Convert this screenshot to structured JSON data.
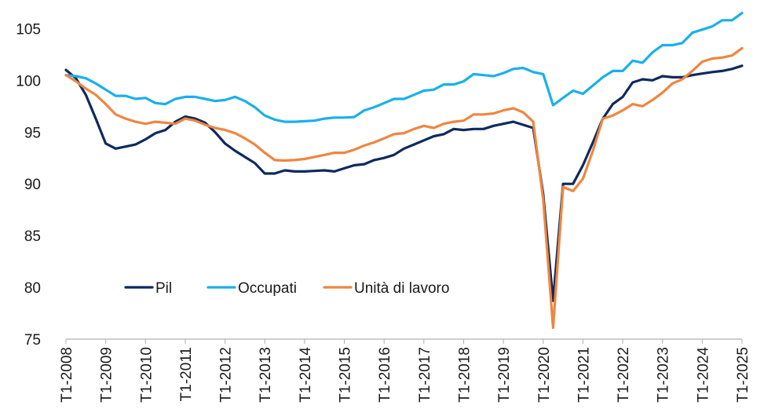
{
  "chart_data": {
    "type": "line",
    "title": "",
    "xlabel": "",
    "ylabel": "",
    "ylim": [
      75,
      107
    ],
    "y_ticks": [
      75,
      80,
      85,
      90,
      95,
      100,
      105
    ],
    "grid": false,
    "legend_position": "lower-left",
    "x_tick_labels": [
      "T1-2008",
      "T1-2009",
      "T1-2010",
      "T1-2011",
      "T1-2012",
      "T1-2013",
      "T1-2014",
      "T1-2015",
      "T1-2016",
      "T1-2017",
      "T1-2018",
      "T1-2019",
      "T1-2020",
      "T1-2021",
      "T1-2022",
      "T1-2023",
      "T1-2024",
      "T1-2025"
    ],
    "x": [
      "T1-2008",
      "T2-2008",
      "T3-2008",
      "T4-2008",
      "T1-2009",
      "T2-2009",
      "T3-2009",
      "T4-2009",
      "T1-2010",
      "T2-2010",
      "T3-2010",
      "T4-2010",
      "T1-2011",
      "T2-2011",
      "T3-2011",
      "T4-2011",
      "T1-2012",
      "T2-2012",
      "T3-2012",
      "T4-2012",
      "T1-2013",
      "T2-2013",
      "T3-2013",
      "T4-2013",
      "T1-2014",
      "T2-2014",
      "T3-2014",
      "T4-2014",
      "T1-2015",
      "T2-2015",
      "T3-2015",
      "T4-2015",
      "T1-2016",
      "T2-2016",
      "T3-2016",
      "T4-2016",
      "T1-2017",
      "T2-2017",
      "T3-2017",
      "T4-2017",
      "T1-2018",
      "T2-2018",
      "T3-2018",
      "T4-2018",
      "T1-2019",
      "T2-2019",
      "T3-2019",
      "T4-2019",
      "T1-2020",
      "T2-2020",
      "T3-2020",
      "T4-2020",
      "T1-2021",
      "T2-2021",
      "T3-2021",
      "T4-2021",
      "T1-2022",
      "T2-2022",
      "T3-2022",
      "T4-2022",
      "T1-2023",
      "T2-2023",
      "T3-2023",
      "T4-2023",
      "T1-2024",
      "T2-2024",
      "T3-2024",
      "T4-2024",
      "T1-2025"
    ],
    "series": [
      {
        "name": "Pil",
        "color": "#0e2a5e",
        "values": [
          101.0,
          100.2,
          98.6,
          96.3,
          93.9,
          93.4,
          93.6,
          93.8,
          94.3,
          94.9,
          95.2,
          96.0,
          96.5,
          96.3,
          95.9,
          95.0,
          93.9,
          93.2,
          92.6,
          92.0,
          91.0,
          91.0,
          91.3,
          91.2,
          91.2,
          91.25,
          91.3,
          91.2,
          91.5,
          91.8,
          91.9,
          92.3,
          92.5,
          92.8,
          93.4,
          93.8,
          94.2,
          94.6,
          94.8,
          95.3,
          95.2,
          95.3,
          95.3,
          95.6,
          95.8,
          96.0,
          95.7,
          95.4,
          89.0,
          78.7,
          90.0,
          90.0,
          91.8,
          94.0,
          96.3,
          97.7,
          98.4,
          99.8,
          100.1,
          100.0,
          100.4,
          100.3,
          100.3,
          100.5,
          100.65,
          100.8,
          100.9,
          101.1,
          101.4
        ]
      },
      {
        "name": "Occupati",
        "color": "#1ab0ea",
        "values": [
          100.5,
          100.4,
          100.2,
          99.7,
          99.1,
          98.5,
          98.5,
          98.2,
          98.3,
          97.8,
          97.7,
          98.2,
          98.4,
          98.4,
          98.2,
          98.0,
          98.1,
          98.4,
          98.0,
          97.4,
          96.6,
          96.2,
          96.0,
          96.0,
          96.05,
          96.1,
          96.3,
          96.4,
          96.4,
          96.45,
          97.1,
          97.4,
          97.8,
          98.2,
          98.2,
          98.6,
          99.0,
          99.1,
          99.6,
          99.6,
          99.9,
          100.6,
          100.5,
          100.4,
          100.7,
          101.1,
          101.2,
          100.8,
          100.6,
          97.6,
          98.3,
          99.0,
          98.7,
          99.5,
          100.3,
          100.9,
          100.9,
          101.9,
          101.7,
          102.7,
          103.4,
          103.4,
          103.6,
          104.6,
          104.9,
          105.2,
          105.8,
          105.8,
          106.5
        ]
      },
      {
        "name": "Unità di lavoro",
        "color": "#ef8640",
        "values": [
          100.5,
          99.9,
          99.2,
          98.6,
          97.7,
          96.7,
          96.3,
          96.0,
          95.8,
          96.0,
          95.9,
          95.8,
          96.3,
          96.1,
          95.7,
          95.4,
          95.2,
          94.9,
          94.4,
          93.8,
          93.0,
          92.3,
          92.25,
          92.3,
          92.4,
          92.6,
          92.8,
          93.0,
          93.0,
          93.3,
          93.7,
          94.0,
          94.4,
          94.8,
          94.9,
          95.3,
          95.6,
          95.4,
          95.8,
          96.0,
          96.1,
          96.7,
          96.7,
          96.8,
          97.1,
          97.3,
          96.9,
          96.0,
          88.5,
          76.1,
          89.7,
          89.3,
          90.5,
          93.2,
          96.3,
          96.6,
          97.1,
          97.7,
          97.5,
          98.1,
          98.8,
          99.7,
          100.1,
          100.9,
          101.8,
          102.1,
          102.2,
          102.4,
          103.1
        ]
      }
    ]
  }
}
